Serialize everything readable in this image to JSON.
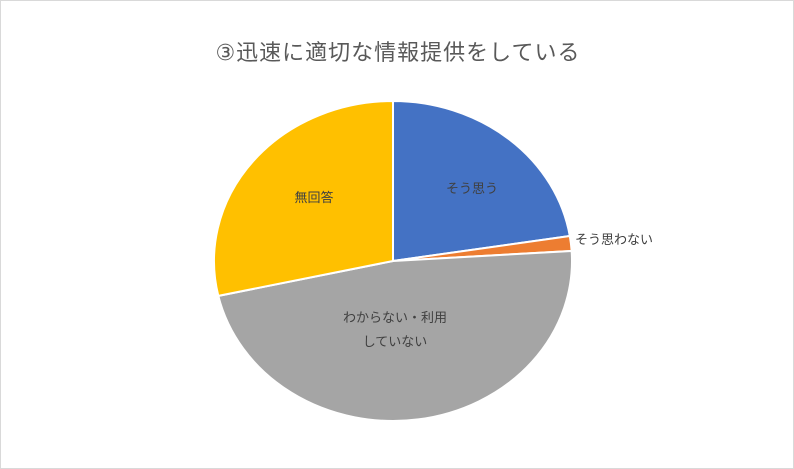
{
  "chart_data": {
    "type": "pie",
    "title": "③迅速に適切な情報提供をしている",
    "slices": [
      {
        "label": "そう思う",
        "value": 22.5,
        "color": "#4472c4"
      },
      {
        "label": "そう思わない",
        "value": 1.5,
        "color": "#ed7d31"
      },
      {
        "label": "わからない・利用していない",
        "label_lines": [
          "わからない・利用",
          "していない"
        ],
        "value": 47.5,
        "color": "#a5a5a5"
      },
      {
        "label": "無回答",
        "value": 28.5,
        "color": "#ffc000"
      }
    ]
  }
}
